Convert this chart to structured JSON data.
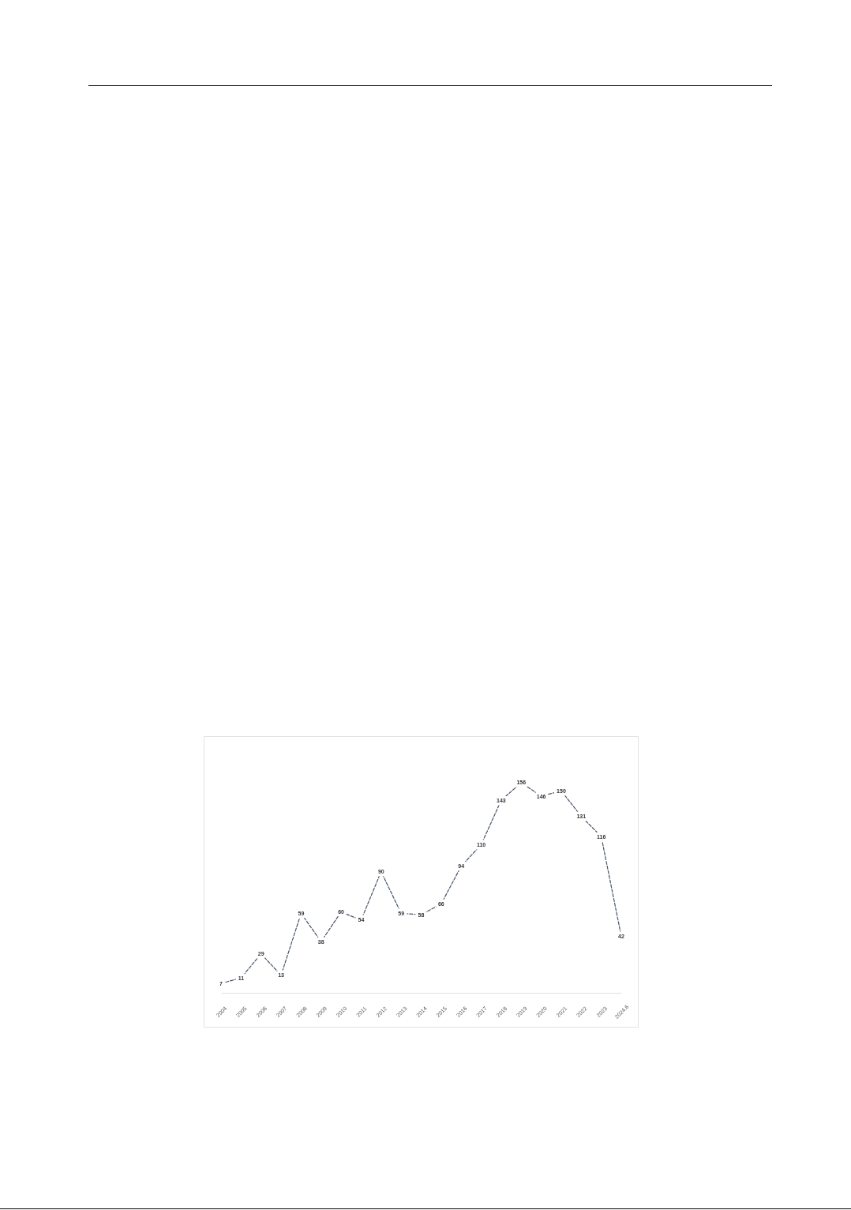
{
  "chart_data": {
    "type": "line",
    "categories": [
      "2004",
      "2005",
      "2006",
      "2007",
      "2008",
      "2009",
      "2010",
      "2011",
      "2012",
      "2013",
      "2014",
      "2015",
      "2016",
      "2017",
      "2018",
      "2019",
      "2020",
      "2021",
      "2022",
      "2023",
      "2024.6"
    ],
    "values": [
      7,
      11,
      29,
      13,
      59,
      38,
      60,
      54,
      90,
      59,
      58,
      66,
      94,
      110,
      143,
      156,
      146,
      150,
      131,
      116,
      42
    ],
    "color": "#44546a",
    "line_style": "dashed",
    "tick_labels": "x",
    "data_labels": true
  }
}
